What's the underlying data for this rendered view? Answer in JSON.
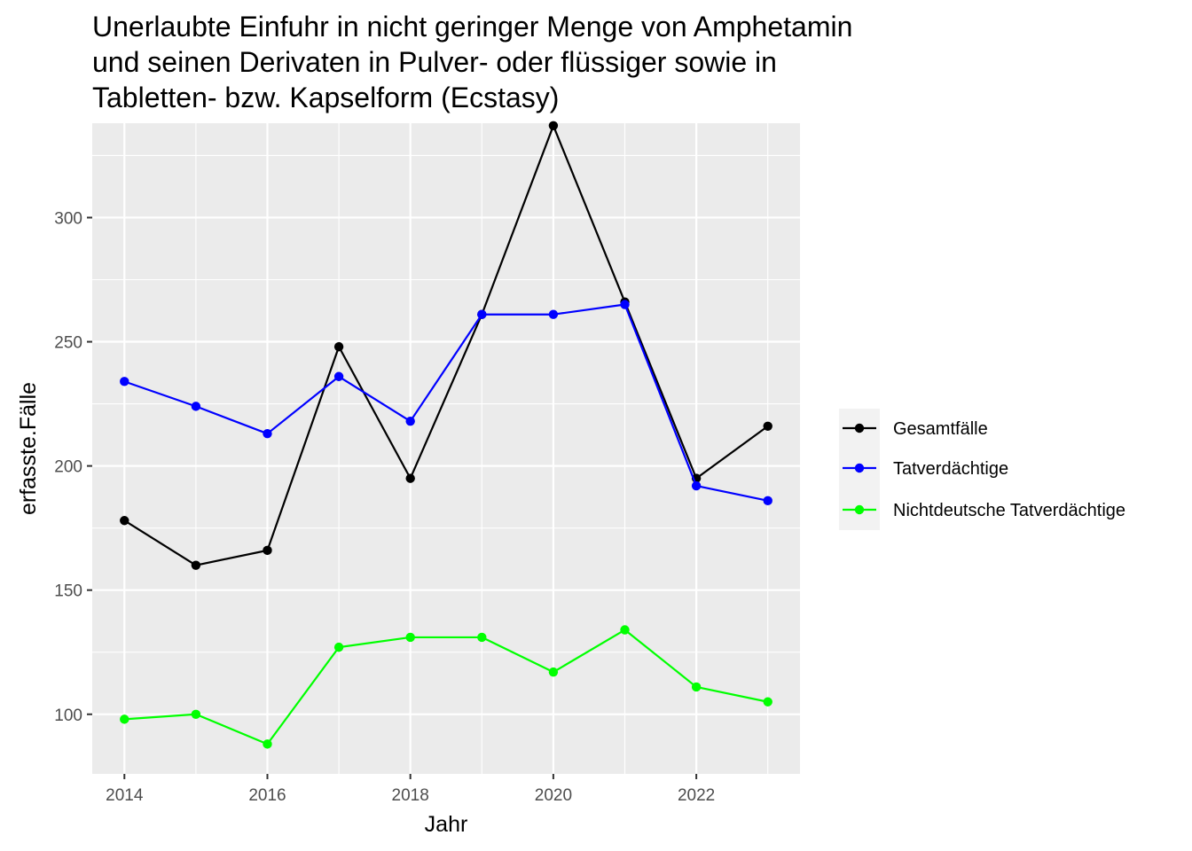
{
  "chart_data": {
    "type": "line",
    "title_lines": [
      "Unerlaubte Einfuhr in nicht geringer Menge von Amphetamin",
      "und seinen Derivaten in Pulver- oder flüssiger sowie in",
      "Tabletten- bzw. Kapselform (Ecstasy)"
    ],
    "xlabel": "Jahr",
    "ylabel": "erfasste.Fälle",
    "x": [
      2014,
      2015,
      2016,
      2017,
      2018,
      2019,
      2020,
      2021,
      2022,
      2023
    ],
    "xlim": [
      2013.55,
      2023.45
    ],
    "ylim": [
      76,
      338
    ],
    "x_ticks": [
      2014,
      2016,
      2018,
      2020,
      2022
    ],
    "y_ticks": [
      100,
      150,
      200,
      250,
      300
    ],
    "grid": true,
    "legend_position": "right",
    "series": [
      {
        "name": "Gesamtfälle",
        "color": "#000000",
        "values": [
          178,
          160,
          166,
          248,
          195,
          261,
          337,
          266,
          195,
          216
        ]
      },
      {
        "name": "Tatverdächtige",
        "color": "#0000ff",
        "values": [
          234,
          224,
          213,
          236,
          218,
          261,
          261,
          265,
          192,
          186
        ]
      },
      {
        "name": "Nichtdeutsche Tatverdächtige",
        "color": "#00ff00",
        "values": [
          98,
          100,
          88,
          127,
          131,
          131,
          117,
          134,
          111,
          105
        ]
      }
    ]
  }
}
